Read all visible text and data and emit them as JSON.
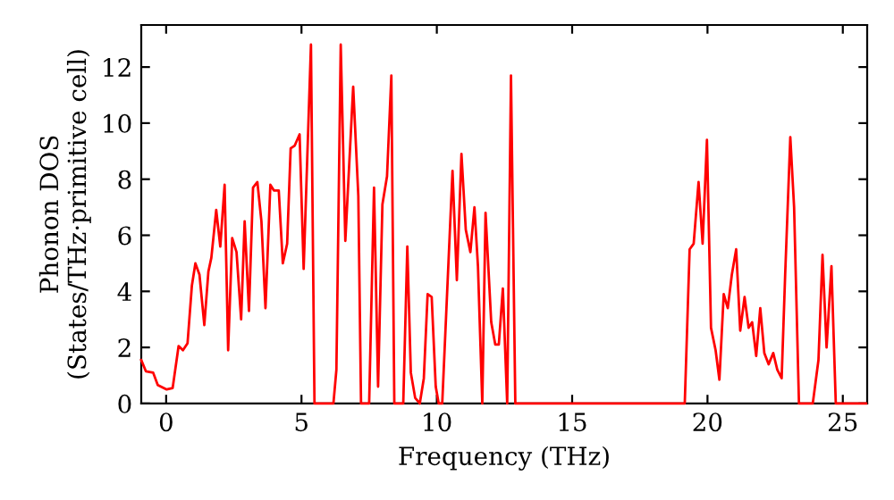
{
  "chart_data": {
    "type": "line",
    "xlabel": "Frequency (THz)",
    "ylabel": "Phonon DOS\n(States/THz·primitive cell)",
    "series": [
      {
        "color": "#ff0000",
        "x": [
          -0.92,
          -0.75,
          -0.48,
          -0.31,
          0.02,
          0.24,
          0.46,
          0.62,
          0.79,
          0.95,
          1.08,
          1.23,
          1.41,
          1.56,
          1.67,
          1.85,
          2.0,
          2.16,
          2.29,
          2.44,
          2.6,
          2.77,
          2.9,
          3.06,
          3.21,
          3.37,
          3.52,
          3.67,
          3.85,
          3.98,
          4.16,
          4.31,
          4.47,
          4.6,
          4.75,
          4.93,
          5.08,
          5.35,
          5.48,
          6.18,
          6.29,
          6.45,
          6.62,
          6.91,
          7.1,
          7.2,
          7.5,
          7.68,
          7.83,
          7.99,
          8.16,
          8.32,
          8.43,
          8.76,
          8.91,
          9.04,
          9.2,
          9.37,
          9.52,
          9.66,
          9.81,
          9.96,
          10.07,
          10.2,
          10.58,
          10.74,
          10.91,
          11.07,
          11.24,
          11.39,
          11.52,
          11.68,
          11.8,
          12.01,
          12.16,
          12.29,
          12.44,
          12.6,
          12.74,
          12.9,
          19.16,
          19.34,
          19.49,
          19.67,
          19.82,
          19.98,
          20.13,
          20.3,
          20.44,
          20.6,
          20.75,
          20.9,
          21.06,
          21.21,
          21.37,
          21.52,
          21.65,
          21.8,
          21.95,
          22.1,
          22.26,
          22.43,
          22.58,
          22.74,
          22.87,
          23.06,
          23.2,
          23.38,
          23.89,
          24.1,
          24.25,
          24.4,
          24.58,
          24.74,
          25.86
        ],
        "values": [
          1.55,
          1.15,
          1.1,
          0.66,
          0.5,
          0.55,
          2.05,
          1.9,
          2.15,
          4.2,
          5.0,
          4.6,
          2.8,
          4.7,
          5.2,
          6.9,
          5.6,
          7.8,
          1.9,
          5.9,
          5.4,
          3.0,
          6.5,
          3.3,
          7.7,
          7.9,
          6.5,
          3.4,
          7.8,
          7.6,
          7.6,
          5.0,
          5.7,
          9.1,
          9.2,
          9.6,
          4.8,
          12.8,
          0,
          0,
          1.2,
          12.8,
          5.8,
          11.3,
          7.4,
          0,
          0,
          7.7,
          0.6,
          7.1,
          8.1,
          11.7,
          0,
          0,
          5.6,
          1.1,
          0.2,
          0,
          0.9,
          3.9,
          3.8,
          0.6,
          0,
          0,
          8.3,
          4.4,
          8.9,
          6.2,
          5.4,
          7.0,
          4.9,
          0,
          6.8,
          2.9,
          2.1,
          2.1,
          4.1,
          0,
          11.7,
          0,
          0,
          5.5,
          5.7,
          7.9,
          5.7,
          9.4,
          2.7,
          1.9,
          0.85,
          3.9,
          3.4,
          4.6,
          5.5,
          2.6,
          3.8,
          2.7,
          2.9,
          1.7,
          3.4,
          1.8,
          1.4,
          1.8,
          1.2,
          0.9,
          4.6,
          9.5,
          7.0,
          0,
          0,
          1.55,
          5.3,
          2.0,
          4.9,
          0,
          0
        ]
      }
    ],
    "xlim": [
      -0.92,
      25.9
    ],
    "ylim": [
      0,
      13.5
    ],
    "xticks": [
      0,
      5,
      10,
      15,
      20,
      25
    ],
    "yticks": [
      0,
      2,
      4,
      6,
      8,
      10,
      12
    ],
    "marker": "none",
    "line_style": "solid",
    "grid": false,
    "legend": false
  }
}
